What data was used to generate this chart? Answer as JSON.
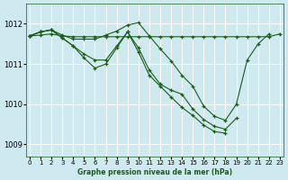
{
  "title": "Graphe pression niveau de la mer (hPa)",
  "background_color": "#cfe9f0",
  "line_color": "#1a5c1a",
  "grid_color": "#ffffff",
  "ylim": [
    1008.7,
    1012.5
  ],
  "xlim": [
    -0.3,
    23.3
  ],
  "yticks": [
    1009,
    1010,
    1011,
    1012
  ],
  "xticks": [
    0,
    1,
    2,
    3,
    4,
    5,
    6,
    7,
    8,
    9,
    10,
    11,
    12,
    13,
    14,
    15,
    16,
    17,
    18,
    19,
    20,
    21,
    22,
    23
  ],
  "series": [
    {
      "x": [
        0,
        1,
        2,
        3,
        4,
        5,
        6,
        7,
        8,
        9,
        10,
        11,
        12,
        13,
        14,
        15,
        16,
        17,
        18,
        19,
        20,
        21,
        22,
        23
      ],
      "y": [
        1011.7,
        1011.72,
        1011.75,
        1011.7,
        1011.68,
        1011.68,
        1011.68,
        1011.68,
        1011.68,
        1011.68,
        1011.68,
        1011.68,
        1011.68,
        1011.68,
        1011.68,
        1011.68,
        1011.68,
        1011.68,
        1011.68,
        1011.68,
        1011.68,
        1011.68,
        1011.68,
        1011.75
      ]
    },
    {
      "x": [
        0,
        1,
        2,
        3,
        4,
        5,
        6,
        7,
        8,
        9,
        10,
        11,
        12,
        13,
        14,
        15,
        16,
        17,
        18,
        19,
        20,
        21,
        22
      ],
      "y": [
        1011.7,
        1011.8,
        1011.85,
        1011.72,
        1011.62,
        1011.62,
        1011.62,
        1011.72,
        1011.82,
        1011.97,
        1012.03,
        1011.7,
        1011.38,
        1011.08,
        1010.72,
        1010.45,
        1009.95,
        1009.7,
        1009.6,
        1010.0,
        1011.1,
        1011.5,
        1011.75
      ]
    },
    {
      "x": [
        0,
        1,
        2,
        3,
        4,
        5,
        6,
        7,
        8,
        9,
        10,
        11,
        12,
        13,
        14,
        15,
        16,
        17,
        18,
        19
      ],
      "y": [
        1011.7,
        1011.8,
        1011.85,
        1011.65,
        1011.45,
        1011.25,
        1011.1,
        1011.1,
        1011.45,
        1011.8,
        1011.4,
        1010.85,
        1010.5,
        1010.35,
        1010.25,
        1009.88,
        1009.62,
        1009.45,
        1009.38,
        1009.65
      ]
    },
    {
      "x": [
        0,
        1,
        2,
        3,
        4,
        5,
        6,
        7,
        8,
        9,
        10,
        11,
        12,
        13,
        14,
        15,
        16,
        17,
        18
      ],
      "y": [
        1011.7,
        1011.8,
        1011.85,
        1011.65,
        1011.45,
        1011.15,
        1010.9,
        1011.0,
        1011.4,
        1011.8,
        1011.3,
        1010.72,
        1010.45,
        1010.18,
        1009.92,
        1009.72,
        1009.48,
        1009.32,
        1009.28
      ]
    }
  ]
}
